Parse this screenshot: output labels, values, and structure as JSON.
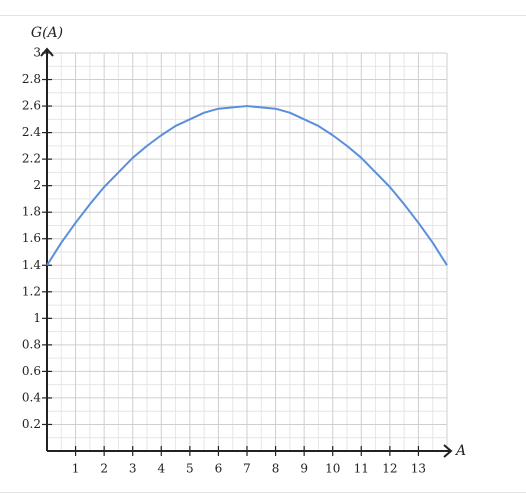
{
  "chart_data": {
    "type": "line",
    "x_label": "A",
    "y_label": "G(A)",
    "x": [
      0,
      0.5,
      1,
      1.5,
      2,
      2.5,
      3,
      3.5,
      4,
      4.5,
      5,
      5.5,
      6,
      6.5,
      7,
      7.5,
      8,
      8.5,
      9,
      9.5,
      10,
      10.5,
      11,
      11.5,
      12,
      12.5,
      13,
      13.5,
      14
    ],
    "series": [
      {
        "color": "#5a8fdc",
        "values": [
          1.4,
          1.57,
          1.72,
          1.86,
          1.99,
          2.1,
          2.21,
          2.3,
          2.38,
          2.45,
          2.5,
          2.55,
          2.58,
          2.59,
          2.6,
          2.59,
          2.58,
          2.55,
          2.5,
          2.45,
          2.38,
          2.3,
          2.21,
          2.1,
          1.99,
          1.86,
          1.72,
          1.57,
          1.4
        ]
      }
    ],
    "xlim": [
      0,
      14
    ],
    "ylim": [
      0,
      3
    ],
    "xticks": [
      1,
      2,
      3,
      4,
      5,
      6,
      7,
      8,
      9,
      10,
      11,
      12,
      13
    ],
    "yticks": [
      0.2,
      0.4,
      0.6,
      0.8,
      1,
      1.2,
      1.4,
      1.6,
      1.8,
      2,
      2.2,
      2.4,
      2.6,
      2.8,
      3
    ],
    "grid": true
  }
}
